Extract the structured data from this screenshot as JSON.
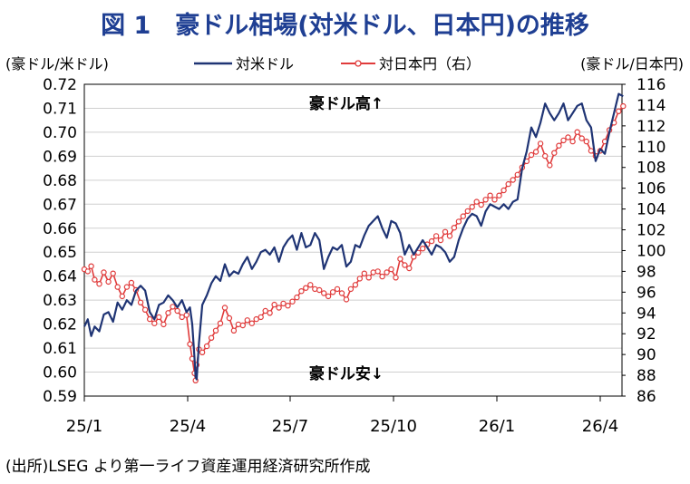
{
  "figure": {
    "title": "図 1　豪ドル相場(対米ドル、日本円)の推移",
    "source": "(出所)LSEG より第一ライフ資産運用経済研究所作成"
  },
  "chart_data": {
    "type": "line",
    "ylabel_left": "(豪ドル/米ドル)",
    "ylabel_right": "(豪ドル/日本円)",
    "ylim_left": [
      0.59,
      0.72
    ],
    "ylim_right": [
      86,
      116
    ],
    "yticks_left": [
      "0.72",
      "0.71",
      "0.70",
      "0.69",
      "0.68",
      "0.67",
      "0.66",
      "0.65",
      "0.64",
      "0.63",
      "0.62",
      "0.61",
      "0.60",
      "0.59"
    ],
    "yticks_right": [
      "116",
      "114",
      "112",
      "110",
      "108",
      "106",
      "104",
      "102",
      "100",
      "98",
      "96",
      "94",
      "92",
      "90",
      "88",
      "86"
    ],
    "xticks": [
      "25/1",
      "25/4",
      "25/7",
      "25/10",
      "26/1",
      "26/4"
    ],
    "annotations": {
      "high": "豪ドル高↑",
      "low": "豪ドル安↓"
    },
    "grid": true,
    "legend_position": "top",
    "series": [
      {
        "name": "対米ドル",
        "axis": "left",
        "color": "#1f3474",
        "points": [
          [
            "2025-01-01",
            0.619
          ],
          [
            "2025-01-04",
            0.622
          ],
          [
            "2025-01-07",
            0.615
          ],
          [
            "2025-01-10",
            0.619
          ],
          [
            "2025-01-14",
            0.617
          ],
          [
            "2025-01-18",
            0.624
          ],
          [
            "2025-01-22",
            0.625
          ],
          [
            "2025-01-26",
            0.621
          ],
          [
            "2025-01-30",
            0.629
          ],
          [
            "2025-02-03",
            0.626
          ],
          [
            "2025-02-07",
            0.63
          ],
          [
            "2025-02-11",
            0.628
          ],
          [
            "2025-02-15",
            0.634
          ],
          [
            "2025-02-19",
            0.636
          ],
          [
            "2025-02-23",
            0.634
          ],
          [
            "2025-02-27",
            0.625
          ],
          [
            "2025-03-03",
            0.622
          ],
          [
            "2025-03-07",
            0.628
          ],
          [
            "2025-03-11",
            0.629
          ],
          [
            "2025-03-15",
            0.632
          ],
          [
            "2025-03-19",
            0.63
          ],
          [
            "2025-03-23",
            0.627
          ],
          [
            "2025-03-27",
            0.63
          ],
          [
            "2025-03-31",
            0.625
          ],
          [
            "2025-04-03",
            0.627
          ],
          [
            "2025-04-05",
            0.62
          ],
          [
            "2025-04-07",
            0.606
          ],
          [
            "2025-04-08",
            0.598
          ],
          [
            "2025-04-09",
            0.597
          ],
          [
            "2025-04-11",
            0.612
          ],
          [
            "2025-04-14",
            0.628
          ],
          [
            "2025-04-18",
            0.632
          ],
          [
            "2025-04-22",
            0.637
          ],
          [
            "2025-04-26",
            0.64
          ],
          [
            "2025-04-30",
            0.638
          ],
          [
            "2025-05-04",
            0.645
          ],
          [
            "2025-05-08",
            0.64
          ],
          [
            "2025-05-12",
            0.642
          ],
          [
            "2025-05-16",
            0.641
          ],
          [
            "2025-05-20",
            0.645
          ],
          [
            "2025-05-24",
            0.648
          ],
          [
            "2025-05-28",
            0.643
          ],
          [
            "2025-06-01",
            0.646
          ],
          [
            "2025-06-05",
            0.65
          ],
          [
            "2025-06-09",
            0.651
          ],
          [
            "2025-06-13",
            0.649
          ],
          [
            "2025-06-17",
            0.652
          ],
          [
            "2025-06-21",
            0.646
          ],
          [
            "2025-06-25",
            0.652
          ],
          [
            "2025-06-29",
            0.655
          ],
          [
            "2025-07-03",
            0.657
          ],
          [
            "2025-07-07",
            0.651
          ],
          [
            "2025-07-11",
            0.658
          ],
          [
            "2025-07-15",
            0.652
          ],
          [
            "2025-07-19",
            0.653
          ],
          [
            "2025-07-23",
            0.658
          ],
          [
            "2025-07-27",
            0.655
          ],
          [
            "2025-07-31",
            0.643
          ],
          [
            "2025-08-04",
            0.648
          ],
          [
            "2025-08-08",
            0.652
          ],
          [
            "2025-08-12",
            0.651
          ],
          [
            "2025-08-16",
            0.653
          ],
          [
            "2025-08-20",
            0.644
          ],
          [
            "2025-08-24",
            0.646
          ],
          [
            "2025-08-28",
            0.653
          ],
          [
            "2025-09-01",
            0.652
          ],
          [
            "2025-09-05",
            0.657
          ],
          [
            "2025-09-09",
            0.661
          ],
          [
            "2025-09-13",
            0.663
          ],
          [
            "2025-09-17",
            0.665
          ],
          [
            "2025-09-21",
            0.66
          ],
          [
            "2025-09-25",
            0.656
          ],
          [
            "2025-09-29",
            0.663
          ],
          [
            "2025-10-03",
            0.662
          ],
          [
            "2025-10-07",
            0.658
          ],
          [
            "2025-10-11",
            0.649
          ],
          [
            "2025-10-15",
            0.653
          ],
          [
            "2025-10-19",
            0.649
          ],
          [
            "2025-10-23",
            0.652
          ],
          [
            "2025-10-27",
            0.655
          ],
          [
            "2025-10-31",
            0.652
          ],
          [
            "2025-11-04",
            0.649
          ],
          [
            "2025-11-08",
            0.653
          ],
          [
            "2025-11-12",
            0.652
          ],
          [
            "2025-11-16",
            0.65
          ],
          [
            "2025-11-20",
            0.646
          ],
          [
            "2025-11-24",
            0.648
          ],
          [
            "2025-11-28",
            0.655
          ],
          [
            "2025-12-02",
            0.66
          ],
          [
            "2025-12-06",
            0.664
          ],
          [
            "2025-12-10",
            0.666
          ],
          [
            "2025-12-14",
            0.665
          ],
          [
            "2025-12-18",
            0.661
          ],
          [
            "2025-12-22",
            0.667
          ],
          [
            "2025-12-26",
            0.67
          ],
          [
            "2025-12-30",
            0.669
          ],
          [
            "2026-01-03",
            0.668
          ],
          [
            "2026-01-07",
            0.67
          ],
          [
            "2026-01-11",
            0.668
          ],
          [
            "2026-01-15",
            0.671
          ],
          [
            "2026-01-19",
            0.672
          ],
          [
            "2026-01-23",
            0.685
          ],
          [
            "2026-01-27",
            0.692
          ],
          [
            "2026-01-31",
            0.702
          ],
          [
            "2026-02-04",
            0.698
          ],
          [
            "2026-02-08",
            0.704
          ],
          [
            "2026-02-12",
            0.712
          ],
          [
            "2026-02-16",
            0.708
          ],
          [
            "2026-02-20",
            0.705
          ],
          [
            "2026-02-24",
            0.708
          ],
          [
            "2026-02-28",
            0.712
          ],
          [
            "2026-03-04",
            0.705
          ],
          [
            "2026-03-08",
            0.708
          ],
          [
            "2026-03-12",
            0.711
          ],
          [
            "2026-03-16",
            0.712
          ],
          [
            "2026-03-20",
            0.705
          ],
          [
            "2026-03-24",
            0.702
          ],
          [
            "2026-03-28",
            0.688
          ],
          [
            "2026-04-01",
            0.693
          ],
          [
            "2026-04-05",
            0.691
          ],
          [
            "2026-04-09",
            0.7
          ],
          [
            "2026-04-13",
            0.708
          ],
          [
            "2026-04-17",
            0.716
          ],
          [
            "2026-04-21",
            0.715
          ]
        ]
      },
      {
        "name": "対日本円（右）",
        "axis": "right",
        "color": "#e03b3b",
        "points": [
          [
            "2025-01-01",
            98.2
          ],
          [
            "2025-01-04",
            98.0
          ],
          [
            "2025-01-07",
            98.5
          ],
          [
            "2025-01-10",
            97.2
          ],
          [
            "2025-01-14",
            96.8
          ],
          [
            "2025-01-18",
            97.9
          ],
          [
            "2025-01-22",
            97.0
          ],
          [
            "2025-01-26",
            97.8
          ],
          [
            "2025-01-30",
            96.5
          ],
          [
            "2025-02-03",
            95.6
          ],
          [
            "2025-02-07",
            96.5
          ],
          [
            "2025-02-11",
            96.9
          ],
          [
            "2025-02-15",
            96.2
          ],
          [
            "2025-02-19",
            95.0
          ],
          [
            "2025-02-23",
            94.3
          ],
          [
            "2025-02-27",
            93.4
          ],
          [
            "2025-03-03",
            93.0
          ],
          [
            "2025-03-07",
            93.6
          ],
          [
            "2025-03-11",
            92.9
          ],
          [
            "2025-03-15",
            94.0
          ],
          [
            "2025-03-19",
            94.6
          ],
          [
            "2025-03-23",
            94.2
          ],
          [
            "2025-03-27",
            93.6
          ],
          [
            "2025-03-31",
            93.8
          ],
          [
            "2025-04-03",
            91.0
          ],
          [
            "2025-04-05",
            89.6
          ],
          [
            "2025-04-07",
            88.2
          ],
          [
            "2025-04-08",
            87.5
          ],
          [
            "2025-04-09",
            89.0
          ],
          [
            "2025-04-11",
            90.5
          ],
          [
            "2025-04-14",
            90.2
          ],
          [
            "2025-04-18",
            90.8
          ],
          [
            "2025-04-22",
            91.6
          ],
          [
            "2025-04-26",
            92.3
          ],
          [
            "2025-04-30",
            93.0
          ],
          [
            "2025-05-04",
            94.5
          ],
          [
            "2025-05-08",
            93.5
          ],
          [
            "2025-05-12",
            92.3
          ],
          [
            "2025-05-16",
            92.9
          ],
          [
            "2025-05-20",
            92.8
          ],
          [
            "2025-05-24",
            93.3
          ],
          [
            "2025-05-28",
            93.0
          ],
          [
            "2025-06-01",
            93.4
          ],
          [
            "2025-06-05",
            93.6
          ],
          [
            "2025-06-09",
            94.2
          ],
          [
            "2025-06-13",
            94.0
          ],
          [
            "2025-06-17",
            94.8
          ],
          [
            "2025-06-21",
            94.5
          ],
          [
            "2025-06-25",
            94.9
          ],
          [
            "2025-06-29",
            94.7
          ],
          [
            "2025-07-03",
            95.1
          ],
          [
            "2025-07-07",
            95.5
          ],
          [
            "2025-07-11",
            96.1
          ],
          [
            "2025-07-15",
            96.4
          ],
          [
            "2025-07-19",
            96.7
          ],
          [
            "2025-07-23",
            96.3
          ],
          [
            "2025-07-27",
            96.2
          ],
          [
            "2025-07-31",
            95.9
          ],
          [
            "2025-08-04",
            95.6
          ],
          [
            "2025-08-08",
            96.0
          ],
          [
            "2025-08-12",
            96.3
          ],
          [
            "2025-08-16",
            95.9
          ],
          [
            "2025-08-20",
            95.3
          ],
          [
            "2025-08-24",
            96.3
          ],
          [
            "2025-08-28",
            96.7
          ],
          [
            "2025-09-01",
            97.3
          ],
          [
            "2025-09-05",
            97.8
          ],
          [
            "2025-09-09",
            97.4
          ],
          [
            "2025-09-13",
            97.9
          ],
          [
            "2025-09-17",
            98.0
          ],
          [
            "2025-09-21",
            97.5
          ],
          [
            "2025-09-25",
            97.9
          ],
          [
            "2025-09-29",
            98.2
          ],
          [
            "2025-10-03",
            97.4
          ],
          [
            "2025-10-07",
            99.2
          ],
          [
            "2025-10-11",
            98.6
          ],
          [
            "2025-10-15",
            98.3
          ],
          [
            "2025-10-19",
            99.4
          ],
          [
            "2025-10-23",
            99.8
          ],
          [
            "2025-10-27",
            100.2
          ],
          [
            "2025-10-31",
            100.6
          ],
          [
            "2025-11-04",
            100.9
          ],
          [
            "2025-11-08",
            101.4
          ],
          [
            "2025-11-12",
            101.0
          ],
          [
            "2025-11-16",
            101.8
          ],
          [
            "2025-11-20",
            101.4
          ],
          [
            "2025-11-24",
            102.2
          ],
          [
            "2025-11-28",
            102.8
          ],
          [
            "2025-12-02",
            103.3
          ],
          [
            "2025-12-06",
            103.8
          ],
          [
            "2025-12-10",
            104.2
          ],
          [
            "2025-12-14",
            104.7
          ],
          [
            "2025-12-18",
            104.4
          ],
          [
            "2025-12-22",
            104.9
          ],
          [
            "2025-12-26",
            105.3
          ],
          [
            "2025-12-30",
            104.9
          ],
          [
            "2026-01-03",
            105.3
          ],
          [
            "2026-01-07",
            105.8
          ],
          [
            "2026-01-11",
            106.4
          ],
          [
            "2026-01-15",
            106.8
          ],
          [
            "2026-01-19",
            107.3
          ],
          [
            "2026-01-23",
            108.0
          ],
          [
            "2026-01-27",
            108.6
          ],
          [
            "2026-01-31",
            109.2
          ],
          [
            "2026-02-04",
            109.5
          ],
          [
            "2026-02-08",
            110.3
          ],
          [
            "2026-02-12",
            109.1
          ],
          [
            "2026-02-16",
            108.2
          ],
          [
            "2026-02-20",
            109.4
          ],
          [
            "2026-02-24",
            110.1
          ],
          [
            "2026-02-28",
            110.6
          ],
          [
            "2026-03-04",
            110.9
          ],
          [
            "2026-03-08",
            110.5
          ],
          [
            "2026-03-12",
            111.4
          ],
          [
            "2026-03-16",
            110.8
          ],
          [
            "2026-03-20",
            110.5
          ],
          [
            "2026-03-24",
            109.6
          ],
          [
            "2026-03-28",
            109.1
          ],
          [
            "2026-04-01",
            109.6
          ],
          [
            "2026-04-05",
            110.5
          ],
          [
            "2026-04-09",
            111.6
          ],
          [
            "2026-04-13",
            112.3
          ],
          [
            "2026-04-17",
            113.4
          ],
          [
            "2026-04-21",
            113.9
          ]
        ]
      }
    ]
  }
}
